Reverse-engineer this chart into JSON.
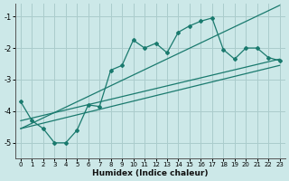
{
  "xlabel": "Humidex (Indice chaleur)",
  "bg_color": "#cce8e8",
  "grid_color": "#aacccc",
  "line_color": "#1a7a6e",
  "xlim": [
    -0.5,
    23.5
  ],
  "ylim": [
    -5.5,
    -0.6
  ],
  "yticks": [
    -5,
    -4,
    -3,
    -2,
    -1
  ],
  "xticks": [
    0,
    1,
    2,
    3,
    4,
    5,
    6,
    7,
    8,
    9,
    10,
    11,
    12,
    13,
    14,
    15,
    16,
    17,
    18,
    19,
    20,
    21,
    22,
    23
  ],
  "curve_zigzag_x": [
    0,
    1,
    2,
    3,
    4,
    5,
    6,
    7,
    8,
    9,
    10,
    11,
    12,
    13,
    14,
    15,
    16,
    17,
    18,
    19,
    20,
    21,
    22,
    23
  ],
  "curve_zigzag_y": [
    -3.7,
    -4.3,
    -4.55,
    -5.0,
    -5.0,
    -4.6,
    -3.8,
    -3.85,
    -2.7,
    -2.55,
    -1.75,
    -2.0,
    -1.85,
    -2.15,
    -1.5,
    -1.3,
    -1.15,
    -1.05,
    -2.05,
    -2.35,
    -2.0,
    -2.0,
    -2.3,
    -2.4
  ],
  "line1_x": [
    0,
    23
  ],
  "line1_y": [
    -4.3,
    -2.35
  ],
  "line2_x": [
    0,
    23
  ],
  "line2_y": [
    -4.55,
    -0.65
  ],
  "line3_x": [
    0,
    23
  ],
  "line3_y": [
    -4.55,
    -2.55
  ]
}
